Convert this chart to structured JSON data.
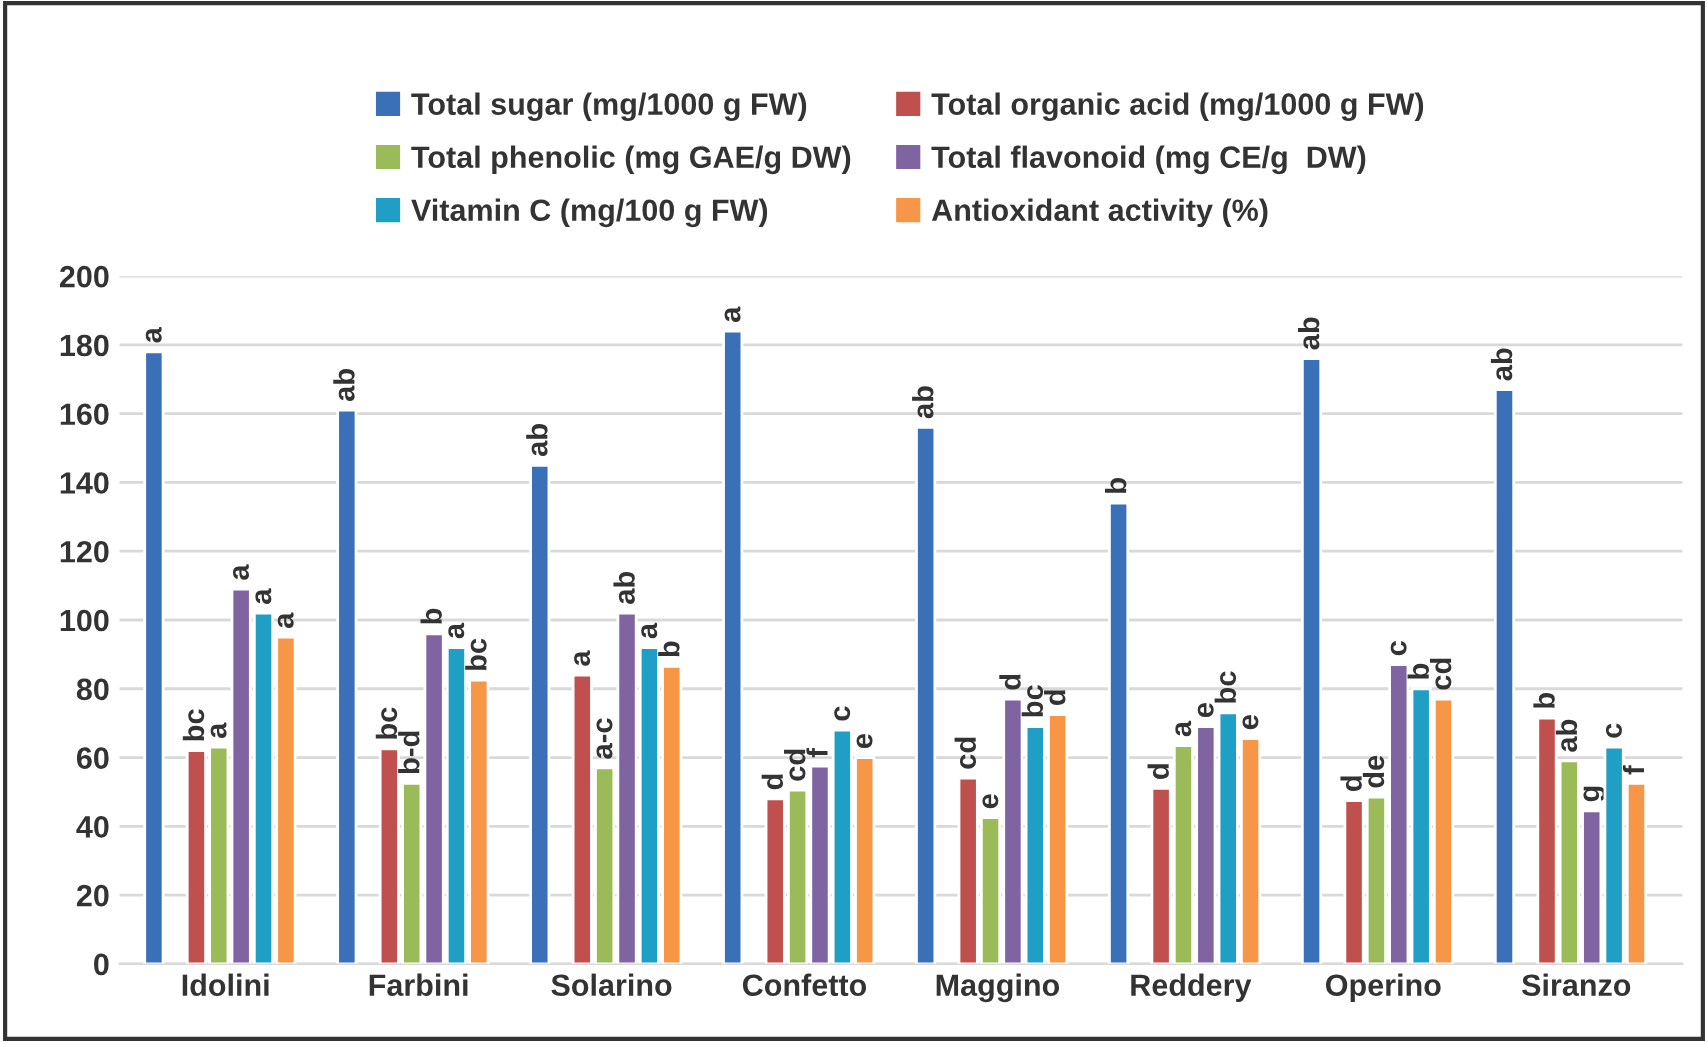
{
  "chart_data": {
    "type": "bar",
    "categories": [
      "Idolini",
      "Farbini",
      "Solarino",
      "Confetto",
      "Maggino",
      "Reddery",
      "Operino",
      "Siranzo"
    ],
    "series": [
      {
        "name": "Total sugar (mg/1000 g FW)",
        "color": "#3a70b8",
        "values": [
          178,
          161,
          145,
          184,
          156,
          134,
          176,
          167
        ],
        "value_labels": [
          "a",
          "ab",
          "ab",
          "a",
          "ab",
          "b",
          "ab",
          "ab"
        ]
      },
      {
        "name": "Total organic acid (mg/1000 g FW)",
        "color": "#c0504d",
        "values": [
          62,
          62.5,
          84,
          48,
          54,
          51,
          47.5,
          71.5
        ],
        "value_labels": [
          "bc",
          "bc",
          "a",
          "d",
          "cd",
          "d",
          "d",
          "b"
        ]
      },
      {
        "name": "Total phenolic (mg GAE/g DW)",
        "color": "#9bbb59",
        "values": [
          63,
          52.5,
          57,
          50.5,
          42.5,
          63.5,
          48.5,
          59
        ],
        "value_labels": [
          "a",
          "b-d",
          "a-c",
          "cd",
          "e",
          "a",
          "de",
          "ab"
        ]
      },
      {
        "name": "Total flavonoid (mg CE/g  DW)",
        "color": "#8064a2",
        "values": [
          109,
          96,
          102,
          57.5,
          77,
          69,
          87,
          44.5
        ],
        "value_labels": [
          "a",
          "b",
          "ab",
          "f",
          "d",
          "e",
          "c",
          "g"
        ]
      },
      {
        "name": "Vitamin C (mg/100 g FW)",
        "color": "#1f9fc6",
        "values": [
          102,
          92,
          92,
          68,
          69,
          73,
          80,
          63
        ],
        "value_labels": [
          "a",
          "a",
          "a",
          "c",
          "bc",
          "bc",
          "b",
          "c"
        ]
      },
      {
        "name": "Antioxidant activity (%)",
        "color": "#f79646",
        "values": [
          95,
          82.5,
          86.5,
          60,
          72.5,
          65.5,
          77,
          52.5
        ],
        "value_labels": [
          "a",
          "bc",
          "b",
          "e",
          "d",
          "e",
          "cd",
          "f"
        ]
      }
    ],
    "ylim": [
      0,
      200
    ],
    "yticks": [
      0,
      20,
      40,
      60,
      80,
      100,
      120,
      140,
      160,
      180,
      200
    ],
    "grid": "y",
    "legend": "top"
  }
}
